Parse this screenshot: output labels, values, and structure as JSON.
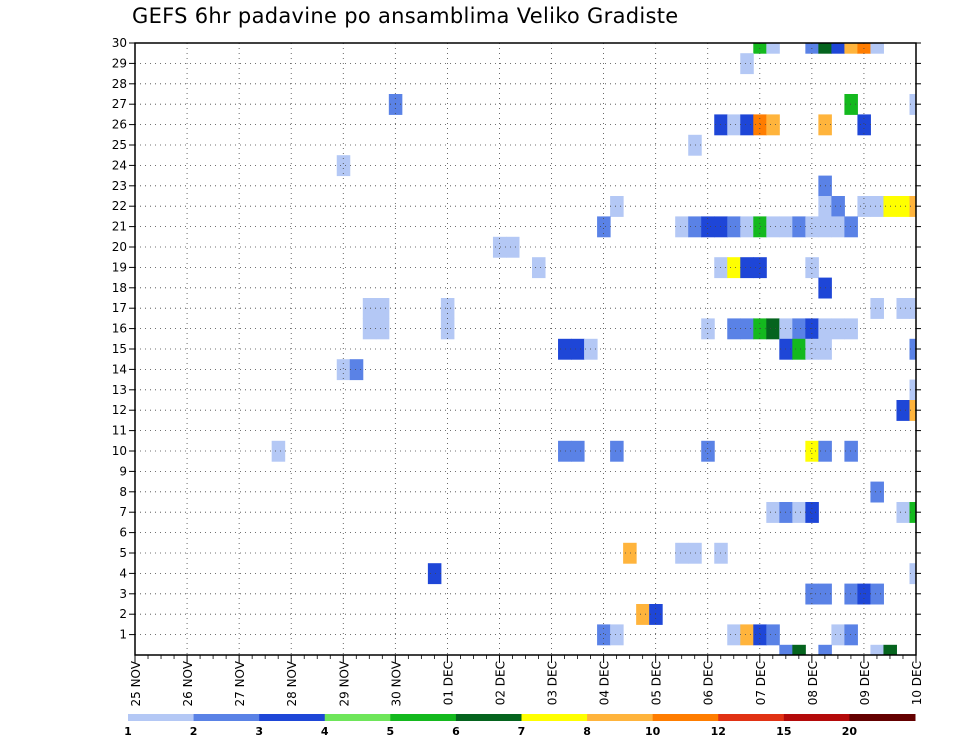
{
  "chart_data": {
    "type": "heatmap",
    "title": "GEFS 6hr padavine po ansamblima Veliko Gradiste",
    "x_tick_labels": [
      "25 NOV",
      "26 NOV",
      "27 NOV",
      "28 NOV",
      "29 NOV",
      "30 NOV",
      "01 DEC",
      "02 DEC",
      "03 DEC",
      "04 DEC",
      "05 DEC",
      "06 DEC",
      "07 DEC",
      "08 DEC",
      "09 DEC",
      "10 DEC"
    ],
    "y_tick_labels": [
      "1",
      "2",
      "3",
      "4",
      "5",
      "6",
      "7",
      "8",
      "9",
      "10",
      "11",
      "12",
      "13",
      "14",
      "15",
      "16",
      "17",
      "18",
      "19",
      "20",
      "21",
      "22",
      "23",
      "24",
      "25",
      "26",
      "27",
      "28",
      "29",
      "30"
    ],
    "x_unit": "6-hour steps (4 per day) from 25 NOV 00Z",
    "y_unit": "ensemble member",
    "grid": true,
    "legend": {
      "position": "bottom",
      "tick_labels": [
        "1",
        "2",
        "3",
        "4",
        "5",
        "6",
        "7",
        "8",
        "10",
        "12",
        "15",
        "20"
      ],
      "colors": [
        "#b4c8f5",
        "#5a82e6",
        "#1e46d7",
        "#6ee65a",
        "#14b91e",
        "#05641e",
        "#ffff00",
        "#ffb43c",
        "#ff7d00",
        "#e13214",
        "#b40a0a",
        "#640000"
      ]
    },
    "cells": [
      {
        "member": 30,
        "step": 48,
        "value": 5
      },
      {
        "member": 30,
        "step": 49,
        "value": 1
      },
      {
        "member": 30,
        "step": 52,
        "value": 2
      },
      {
        "member": 30,
        "step": 53,
        "value": 6
      },
      {
        "member": 30,
        "step": 54,
        "value": 3
      },
      {
        "member": 30,
        "step": 55,
        "value": 8
      },
      {
        "member": 30,
        "step": 56,
        "value": 10
      },
      {
        "member": 30,
        "step": 57,
        "value": 1
      },
      {
        "member": 29,
        "step": 47,
        "value": 1
      },
      {
        "member": 27,
        "step": 20,
        "value": 2
      },
      {
        "member": 27,
        "step": 55,
        "value": 5
      },
      {
        "member": 27,
        "step": 60,
        "value": 1
      },
      {
        "member": 26,
        "step": 45,
        "value": 3
      },
      {
        "member": 26,
        "step": 46,
        "value": 1
      },
      {
        "member": 26,
        "step": 47,
        "value": 3
      },
      {
        "member": 26,
        "step": 48,
        "value": 10
      },
      {
        "member": 26,
        "step": 49,
        "value": 8
      },
      {
        "member": 26,
        "step": 53,
        "value": 8
      },
      {
        "member": 26,
        "step": 56,
        "value": 3
      },
      {
        "member": 25,
        "step": 43,
        "value": 1
      },
      {
        "member": 24,
        "step": 16,
        "value": 1
      },
      {
        "member": 23,
        "step": 53,
        "value": 2
      },
      {
        "member": 22,
        "step": 37,
        "value": 1
      },
      {
        "member": 22,
        "step": 53,
        "value": 1
      },
      {
        "member": 22,
        "step": 54,
        "value": 2
      },
      {
        "member": 22,
        "step": 56,
        "value": 1
      },
      {
        "member": 22,
        "step": 57,
        "value": 1
      },
      {
        "member": 22,
        "step": 58,
        "value": 7
      },
      {
        "member": 22,
        "step": 59,
        "value": 7
      },
      {
        "member": 22,
        "step": 60,
        "value": 8
      },
      {
        "member": 21,
        "step": 36,
        "value": 2
      },
      {
        "member": 21,
        "step": 42,
        "value": 1
      },
      {
        "member": 21,
        "step": 43,
        "value": 2
      },
      {
        "member": 21,
        "step": 44,
        "value": 3
      },
      {
        "member": 21,
        "step": 45,
        "value": 3
      },
      {
        "member": 21,
        "step": 46,
        "value": 2
      },
      {
        "member": 21,
        "step": 47,
        "value": 1
      },
      {
        "member": 21,
        "step": 48,
        "value": 5
      },
      {
        "member": 21,
        "step": 49,
        "value": 1
      },
      {
        "member": 21,
        "step": 50,
        "value": 1
      },
      {
        "member": 21,
        "step": 51,
        "value": 2
      },
      {
        "member": 21,
        "step": 52,
        "value": 1
      },
      {
        "member": 21,
        "step": 53,
        "value": 1
      },
      {
        "member": 21,
        "step": 54,
        "value": 1
      },
      {
        "member": 21,
        "step": 55,
        "value": 2
      },
      {
        "member": 20,
        "step": 28,
        "value": 1
      },
      {
        "member": 20,
        "step": 29,
        "value": 1
      },
      {
        "member": 19,
        "step": 31,
        "value": 1
      },
      {
        "member": 19,
        "step": 45,
        "value": 1
      },
      {
        "member": 19,
        "step": 46,
        "value": 7
      },
      {
        "member": 19,
        "step": 47,
        "value": 3
      },
      {
        "member": 19,
        "step": 48,
        "value": 3
      },
      {
        "member": 19,
        "step": 52,
        "value": 1
      },
      {
        "member": 18,
        "step": 53,
        "value": 3
      },
      {
        "member": 17,
        "step": 18,
        "value": 1
      },
      {
        "member": 17,
        "step": 19,
        "value": 1
      },
      {
        "member": 17,
        "step": 24,
        "value": 1
      },
      {
        "member": 17,
        "step": 57,
        "value": 1
      },
      {
        "member": 17,
        "step": 59,
        "value": 1
      },
      {
        "member": 17,
        "step": 60,
        "value": 1
      },
      {
        "member": 16,
        "step": 18,
        "value": 1
      },
      {
        "member": 16,
        "step": 19,
        "value": 1
      },
      {
        "member": 16,
        "step": 24,
        "value": 1
      },
      {
        "member": 16,
        "step": 44,
        "value": 1
      },
      {
        "member": 16,
        "step": 46,
        "value": 2
      },
      {
        "member": 16,
        "step": 47,
        "value": 2
      },
      {
        "member": 16,
        "step": 48,
        "value": 5
      },
      {
        "member": 16,
        "step": 49,
        "value": 6
      },
      {
        "member": 16,
        "step": 50,
        "value": 1
      },
      {
        "member": 16,
        "step": 51,
        "value": 2
      },
      {
        "member": 16,
        "step": 52,
        "value": 3
      },
      {
        "member": 16,
        "step": 53,
        "value": 1
      },
      {
        "member": 16,
        "step": 54,
        "value": 1
      },
      {
        "member": 16,
        "step": 55,
        "value": 1
      },
      {
        "member": 15,
        "step": 33,
        "value": 3
      },
      {
        "member": 15,
        "step": 34,
        "value": 3
      },
      {
        "member": 15,
        "step": 35,
        "value": 1
      },
      {
        "member": 15,
        "step": 50,
        "value": 3
      },
      {
        "member": 15,
        "step": 51,
        "value": 5
      },
      {
        "member": 15,
        "step": 52,
        "value": 1
      },
      {
        "member": 15,
        "step": 53,
        "value": 1
      },
      {
        "member": 15,
        "step": 60,
        "value": 2
      },
      {
        "member": 14,
        "step": 16,
        "value": 1
      },
      {
        "member": 14,
        "step": 17,
        "value": 2
      },
      {
        "member": 13,
        "step": 60,
        "value": 1
      },
      {
        "member": 12,
        "step": 59,
        "value": 3
      },
      {
        "member": 12,
        "step": 60,
        "value": 8
      },
      {
        "member": 10,
        "step": 11,
        "value": 1
      },
      {
        "member": 10,
        "step": 33,
        "value": 2
      },
      {
        "member": 10,
        "step": 34,
        "value": 2
      },
      {
        "member": 10,
        "step": 37,
        "value": 2
      },
      {
        "member": 10,
        "step": 44,
        "value": 2
      },
      {
        "member": 10,
        "step": 52,
        "value": 7
      },
      {
        "member": 10,
        "step": 53,
        "value": 2
      },
      {
        "member": 10,
        "step": 55,
        "value": 2
      },
      {
        "member": 8,
        "step": 57,
        "value": 2
      },
      {
        "member": 7,
        "step": 49,
        "value": 1
      },
      {
        "member": 7,
        "step": 50,
        "value": 2
      },
      {
        "member": 7,
        "step": 51,
        "value": 1
      },
      {
        "member": 7,
        "step": 52,
        "value": 3
      },
      {
        "member": 7,
        "step": 59,
        "value": 1
      },
      {
        "member": 7,
        "step": 60,
        "value": 5
      },
      {
        "member": 5,
        "step": 38,
        "value": 8
      },
      {
        "member": 5,
        "step": 42,
        "value": 1
      },
      {
        "member": 5,
        "step": 43,
        "value": 1
      },
      {
        "member": 5,
        "step": 45,
        "value": 1
      },
      {
        "member": 4,
        "step": 23,
        "value": 3
      },
      {
        "member": 4,
        "step": 60,
        "value": 1
      },
      {
        "member": 3,
        "step": 52,
        "value": 2
      },
      {
        "member": 3,
        "step": 53,
        "value": 2
      },
      {
        "member": 3,
        "step": 55,
        "value": 2
      },
      {
        "member": 3,
        "step": 56,
        "value": 3
      },
      {
        "member": 3,
        "step": 57,
        "value": 2
      },
      {
        "member": 2,
        "step": 39,
        "value": 8
      },
      {
        "member": 2,
        "step": 40,
        "value": 3
      },
      {
        "member": 1,
        "step": 36,
        "value": 2
      },
      {
        "member": 1,
        "step": 37,
        "value": 1
      },
      {
        "member": 1,
        "step": 46,
        "value": 1
      },
      {
        "member": 1,
        "step": 47,
        "value": 8
      },
      {
        "member": 1,
        "step": 48,
        "value": 3
      },
      {
        "member": 1,
        "step": 49,
        "value": 2
      },
      {
        "member": 1,
        "step": 54,
        "value": 1
      },
      {
        "member": 1,
        "step": 55,
        "value": 2
      },
      {
        "member": 0,
        "step": 50,
        "value": 2
      },
      {
        "member": 0,
        "step": 51,
        "value": 6
      },
      {
        "member": 0,
        "step": 53,
        "value": 2
      },
      {
        "member": 0,
        "step": 57,
        "value": 1
      },
      {
        "member": 0,
        "step": 58,
        "value": 6
      }
    ]
  }
}
